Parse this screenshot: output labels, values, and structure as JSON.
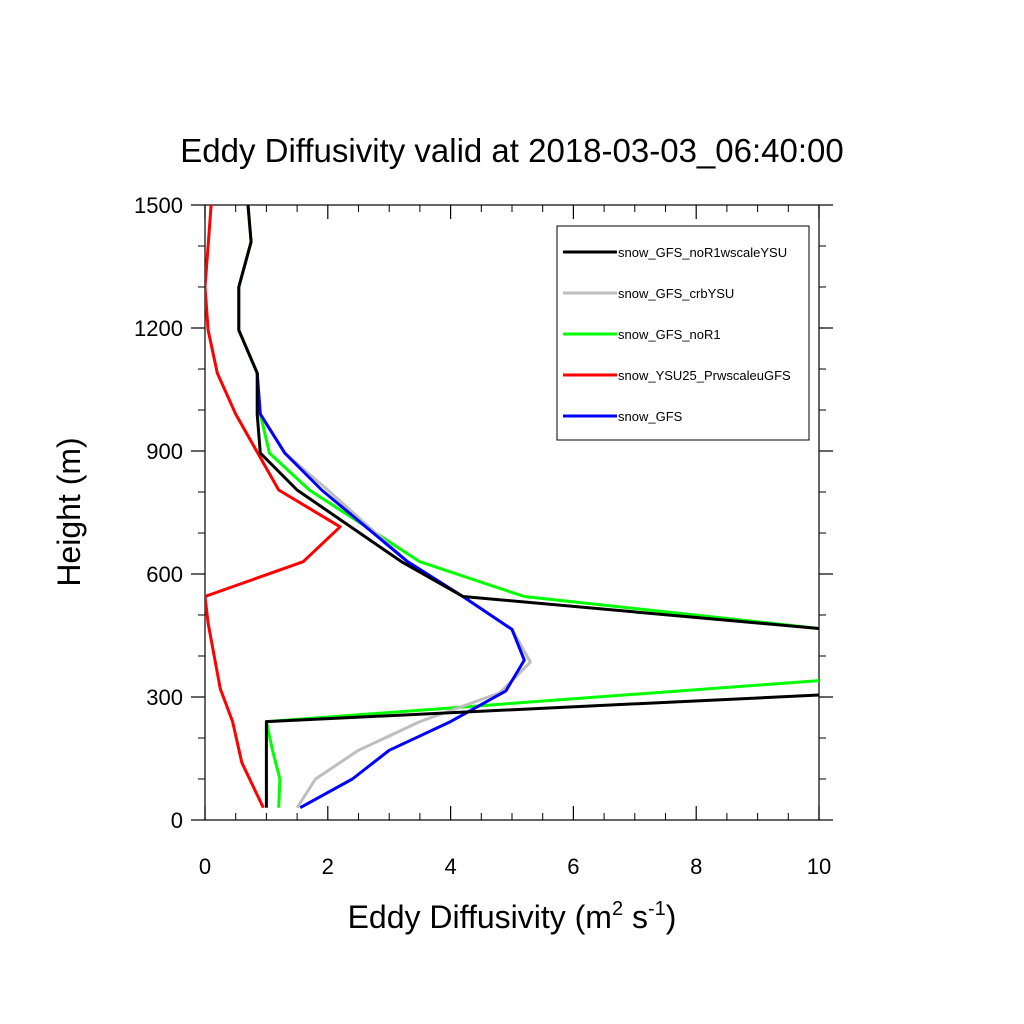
{
  "chart_data": {
    "type": "line",
    "title": "Eddy Diffusivity valid at 2018-03-03_06:40:00",
    "xlabel": {
      "base": "Eddy Diffusivity (m",
      "sup1": "2",
      "mid": " s",
      "sup2": "-1",
      "end": ")"
    },
    "ylabel": "Height (m)",
    "xlim": [
      0,
      10
    ],
    "ylim": [
      0,
      1500
    ],
    "xticks": [
      0,
      2,
      4,
      6,
      8,
      10
    ],
    "xtick_labels": [
      "0",
      "2",
      "4",
      "6",
      "8",
      "10"
    ],
    "yticks": [
      0,
      300,
      600,
      900,
      1200,
      1500
    ],
    "ytick_labels": [
      "0",
      "300",
      "600",
      "900",
      "1200",
      "1500"
    ],
    "grid": false,
    "legend_position": "top-right",
    "series": [
      {
        "name": "snow_GFS_noR1wscaleYSU",
        "color": "#000000",
        "points": [
          [
            1.0,
            30
          ],
          [
            1.0,
            100
          ],
          [
            1.0,
            170
          ],
          [
            1.0,
            240
          ],
          [
            10.0,
            305
          ],
          [
            10.5,
            310
          ],
          [
            10.5,
            460
          ],
          [
            10.0,
            467
          ],
          [
            4.2,
            545
          ],
          [
            3.2,
            630
          ],
          [
            1.5,
            805
          ],
          [
            0.9,
            895
          ],
          [
            0.85,
            990
          ],
          [
            0.85,
            1090
          ],
          [
            0.55,
            1195
          ],
          [
            0.55,
            1300
          ],
          [
            0.75,
            1410
          ],
          [
            0.7,
            1500
          ]
        ]
      },
      {
        "name": "snow_GFS_crbYSU",
        "color": "#bebebe",
        "points": [
          [
            1.5,
            30
          ],
          [
            1.8,
            100
          ],
          [
            2.5,
            170
          ],
          [
            3.5,
            240
          ],
          [
            4.8,
            310
          ],
          [
            5.3,
            385
          ],
          [
            5.0,
            465
          ],
          [
            4.2,
            545
          ],
          [
            3.3,
            630
          ],
          [
            2.0,
            805
          ],
          [
            1.3,
            895
          ],
          [
            0.9,
            990
          ],
          [
            0.85,
            1090
          ],
          [
            0.55,
            1195
          ],
          [
            0.55,
            1300
          ],
          [
            0.75,
            1410
          ],
          [
            0.7,
            1500
          ]
        ]
      },
      {
        "name": "snow_GFS_noR1",
        "color": "#00ff00",
        "points": [
          [
            1.2,
            30
          ],
          [
            1.22,
            100
          ],
          [
            1.1,
            170
          ],
          [
            1.0,
            240
          ],
          [
            10.0,
            340
          ],
          [
            10.5,
            345
          ],
          [
            10.5,
            460
          ],
          [
            10.0,
            467
          ],
          [
            5.2,
            545
          ],
          [
            3.5,
            630
          ],
          [
            1.7,
            805
          ],
          [
            1.05,
            895
          ],
          [
            0.9,
            990
          ],
          [
            0.85,
            1090
          ],
          [
            0.55,
            1195
          ],
          [
            0.55,
            1300
          ],
          [
            0.75,
            1410
          ],
          [
            0.7,
            1500
          ]
        ]
      },
      {
        "name": "snow_YSU25_PrwscaleuGFS",
        "color": "#ff0000",
        "points": [
          [
            0.95,
            30
          ],
          [
            0.6,
            140
          ],
          [
            0.45,
            240
          ],
          [
            0.25,
            320
          ],
          [
            0.15,
            400
          ],
          [
            0.05,
            480
          ],
          [
            0.0,
            545
          ],
          [
            1.6,
            630
          ],
          [
            2.2,
            715
          ],
          [
            1.2,
            805
          ],
          [
            0.5,
            990
          ],
          [
            0.2,
            1090
          ],
          [
            0.05,
            1195
          ],
          [
            0.0,
            1300
          ],
          [
            0.05,
            1400
          ],
          [
            0.1,
            1500
          ]
        ]
      },
      {
        "name": "snow_GFS",
        "color": "#0000ff",
        "points": [
          [
            1.55,
            30
          ],
          [
            2.4,
            100
          ],
          [
            3.0,
            170
          ],
          [
            4.0,
            240
          ],
          [
            4.9,
            315
          ],
          [
            5.2,
            390
          ],
          [
            5.0,
            465
          ],
          [
            4.2,
            545
          ],
          [
            3.3,
            630
          ],
          [
            1.9,
            805
          ],
          [
            1.3,
            895
          ],
          [
            0.9,
            990
          ],
          [
            0.85,
            1090
          ]
        ]
      }
    ]
  }
}
